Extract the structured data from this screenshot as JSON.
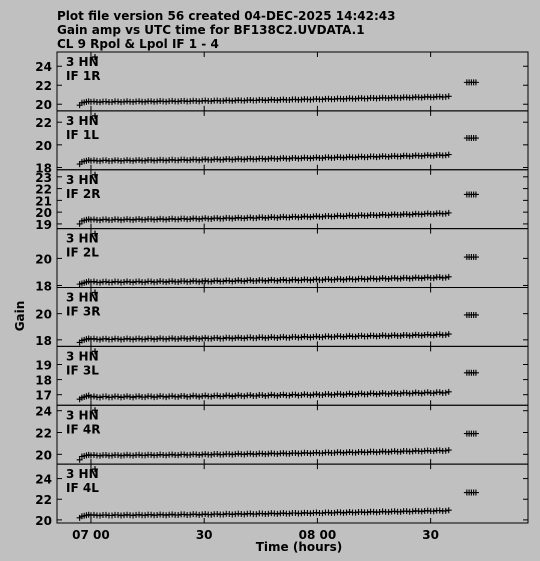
{
  "header": {
    "line1": "Plot file version 56  created 04-DEC-2025 14:42:43",
    "line2": "Gain amp vs UTC time for BF138C2.UVDATA.1",
    "line3": "CL 9  Rpol & Lpol  IF 1 - 4"
  },
  "colors": {
    "background": "#c0c0c0",
    "ink": "#000000"
  },
  "chart_data": {
    "type": "scatter",
    "marker": "plus",
    "xlabel": "Time (hours)",
    "ylabel": "Gain",
    "x_unit": "hours",
    "xlim": [
      6.85,
      8.93
    ],
    "x_ticks": [
      {
        "value": 7.0,
        "label": "07 00"
      },
      {
        "value": 7.5,
        "label": "30"
      },
      {
        "value": 8.0,
        "label": "08 00"
      },
      {
        "value": 8.5,
        "label": "30"
      }
    ],
    "antenna_label": "3 HN",
    "panels": [
      {
        "label": "IF 1R",
        "ylim": [
          19.3,
          25.5
        ],
        "y_ticks": [
          20,
          22,
          24
        ],
        "start": 19.9,
        "early": 20.3,
        "main_start": 20.25,
        "main_end": 20.8,
        "late": 22.3
      },
      {
        "label": "IF 1L",
        "ylim": [
          17.8,
          23.0
        ],
        "y_ticks": [
          18,
          20,
          22
        ],
        "start": 18.3,
        "early": 18.65,
        "main_start": 18.6,
        "main_end": 19.1,
        "late": 20.6
      },
      {
        "label": "IF 2R",
        "ylim": [
          18.6,
          23.6
        ],
        "y_ticks": [
          19,
          20,
          21,
          22,
          23
        ],
        "start": 19.0,
        "early": 19.4,
        "main_start": 19.35,
        "main_end": 19.9,
        "late": 21.5
      },
      {
        "label": "IF 2L",
        "ylim": [
          17.85,
          22.2
        ],
        "y_ticks": [
          18,
          20
        ],
        "start": 18.1,
        "early": 18.3,
        "main_start": 18.25,
        "main_end": 18.6,
        "late": 20.1
      },
      {
        "label": "IF 3R",
        "ylim": [
          17.5,
          22.0
        ],
        "y_ticks": [
          18,
          20
        ],
        "start": 17.8,
        "early": 18.1,
        "main_start": 18.05,
        "main_end": 18.4,
        "late": 19.9
      },
      {
        "label": "IF 3L",
        "ylim": [
          16.3,
          20.2
        ],
        "y_ticks": [
          17,
          18,
          19
        ],
        "start": 16.7,
        "early": 16.95,
        "main_start": 16.85,
        "main_end": 17.15,
        "late": 18.45
      },
      {
        "label": "IF 4R",
        "ylim": [
          19.1,
          24.5
        ],
        "y_ticks": [
          20,
          22,
          24
        ],
        "start": 19.5,
        "early": 19.95,
        "main_start": 19.9,
        "main_end": 20.35,
        "late": 21.9
      },
      {
        "label": "IF 4L",
        "ylim": [
          19.7,
          25.4
        ],
        "y_ticks": [
          20,
          22,
          24
        ],
        "start": 20.2,
        "early": 20.5,
        "main_start": 20.45,
        "main_end": 20.9,
        "late": 22.65
      }
    ],
    "time_groups": {
      "start_x": 6.95,
      "early": {
        "x0": 6.96,
        "x1": 6.99,
        "n": 4
      },
      "main": {
        "x0": 7.0,
        "x1": 8.58,
        "n": 120
      },
      "late": {
        "x0": 8.66,
        "x1": 8.7,
        "n": 5
      }
    }
  }
}
